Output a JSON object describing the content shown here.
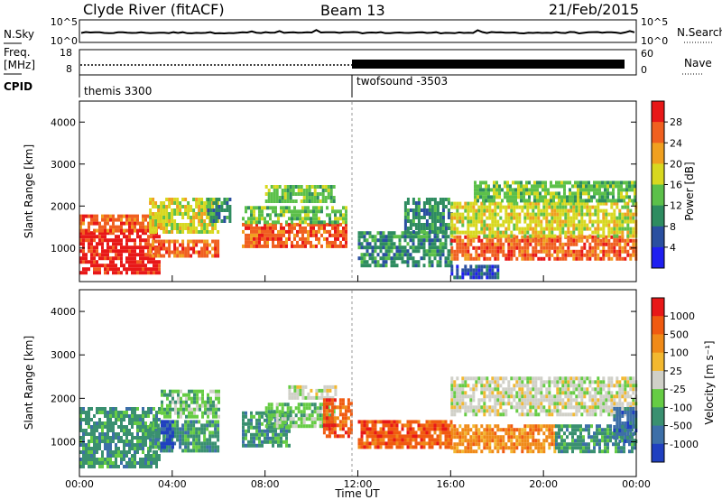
{
  "header": {
    "station": "Clyde River (fitACF)",
    "beam": "Beam 13",
    "date": "21/Feb/2015"
  },
  "noise_panel": {
    "left_label": "N.Sky",
    "right_label": "N.Search",
    "left_ticks": [
      "10^5",
      "10^0"
    ],
    "right_ticks": [
      "10^5",
      "10^0"
    ]
  },
  "freq_panel": {
    "left_label_1": "Freq.",
    "left_label_2": "[MHz]",
    "right_label": "Nave",
    "left_ticks": [
      "18",
      "8"
    ],
    "right_ticks": [
      "60",
      "0"
    ]
  },
  "cpid_panel": {
    "label": "CPID",
    "segments": [
      {
        "name": "themis 3300",
        "start_hour": 0
      },
      {
        "name": "twofsound -3503",
        "start_hour": 12
      }
    ]
  },
  "chart_data": [
    {
      "type": "heatmap",
      "title": "",
      "xlabel": "Time UT",
      "ylabel": "Slant Range [km]",
      "xlim_hours": [
        0,
        24
      ],
      "ylim_km": [
        200,
        4500
      ],
      "x_ticks": [
        "00:00",
        "04:00",
        "08:00",
        "12:00",
        "16:00",
        "20:00",
        "00:00"
      ],
      "y_ticks": [
        1000,
        2000,
        3000,
        4000
      ],
      "colorbar": {
        "label": "Power [dB]",
        "levels": [
          4,
          8,
          12,
          16,
          20,
          24,
          28
        ],
        "colors": [
          "#1f1ff0",
          "#2a4fa0",
          "#2e8c60",
          "#5cc04a",
          "#d8d820",
          "#f0a020",
          "#f06020",
          "#e81818"
        ]
      },
      "regions": [
        {
          "t0": 0.0,
          "t1": 3.5,
          "r0": 400,
          "r1": 1400,
          "level": 7
        },
        {
          "t0": 0.0,
          "t1": 3.5,
          "r0": 1400,
          "r1": 1800,
          "level": 6
        },
        {
          "t0": 3.0,
          "t1": 6.0,
          "r0": 800,
          "r1": 1200,
          "level": 6
        },
        {
          "t0": 3.0,
          "t1": 6.0,
          "r0": 1400,
          "r1": 2200,
          "level": 4
        },
        {
          "t0": 5.5,
          "t1": 6.5,
          "r0": 1600,
          "r1": 2200,
          "level": 2
        },
        {
          "t0": 7.0,
          "t1": 11.5,
          "r0": 1000,
          "r1": 1600,
          "level": 6
        },
        {
          "t0": 7.0,
          "t1": 11.5,
          "r0": 1600,
          "r1": 2000,
          "level": 3
        },
        {
          "t0": 8.0,
          "t1": 11.0,
          "r0": 2100,
          "r1": 2500,
          "level": 3
        },
        {
          "t0": 12.0,
          "t1": 16.0,
          "r0": 600,
          "r1": 1400,
          "level": 2
        },
        {
          "t0": 14.0,
          "t1": 16.0,
          "r0": 1400,
          "r1": 2200,
          "level": 2
        },
        {
          "t0": 16.0,
          "t1": 24.0,
          "r0": 700,
          "r1": 1300,
          "level": 6
        },
        {
          "t0": 16.0,
          "t1": 24.0,
          "r0": 1300,
          "r1": 2100,
          "level": 4
        },
        {
          "t0": 17.0,
          "t1": 24.0,
          "r0": 2100,
          "r1": 2600,
          "level": 3
        },
        {
          "t0": 16.0,
          "t1": 18.0,
          "r0": 300,
          "r1": 600,
          "level": 1
        }
      ]
    },
    {
      "type": "heatmap",
      "title": "",
      "xlabel": "Time UT",
      "ylabel": "Slant Range [km]",
      "xlim_hours": [
        0,
        24
      ],
      "ylim_km": [
        200,
        4500
      ],
      "x_ticks": [
        "00:00",
        "04:00",
        "08:00",
        "12:00",
        "16:00",
        "20:00",
        "00:00"
      ],
      "y_ticks": [
        1000,
        2000,
        3000,
        4000
      ],
      "colorbar": {
        "label": "Velocity [m s⁻¹]",
        "levels": [
          1000,
          500,
          100,
          25,
          -25,
          -100,
          -500,
          -1000
        ],
        "colors": [
          "#2040c0",
          "#3d6fa8",
          "#3a9070",
          "#66cc44",
          "#d0d0c8",
          "#f2b830",
          "#f08a18",
          "#f05a10",
          "#e81818"
        ]
      },
      "regions": [
        {
          "t0": 0.0,
          "t1": 3.5,
          "r0": 400,
          "r1": 1800,
          "level": 2
        },
        {
          "t0": 3.0,
          "t1": 6.0,
          "r0": 800,
          "r1": 1500,
          "level": 2
        },
        {
          "t0": 3.5,
          "t1": 6.0,
          "r0": 1600,
          "r1": 2200,
          "level": 3
        },
        {
          "t0": 3.5,
          "t1": 4.0,
          "r0": 900,
          "r1": 1500,
          "level": 0
        },
        {
          "t0": 7.0,
          "t1": 9.0,
          "r0": 900,
          "r1": 1700,
          "level": 2
        },
        {
          "t0": 8.0,
          "t1": 11.0,
          "r0": 1400,
          "r1": 1900,
          "level": 3
        },
        {
          "t0": 9.0,
          "t1": 11.0,
          "r0": 2000,
          "r1": 2300,
          "level": 4
        },
        {
          "t0": 10.5,
          "t1": 11.7,
          "r0": 1100,
          "r1": 2000,
          "level": 7
        },
        {
          "t0": 12.0,
          "t1": 16.0,
          "r0": 900,
          "r1": 1500,
          "level": 7
        },
        {
          "t0": 16.0,
          "t1": 20.5,
          "r0": 800,
          "r1": 1400,
          "level": 6
        },
        {
          "t0": 16.0,
          "t1": 24.0,
          "r0": 1600,
          "r1": 2500,
          "level": 4
        },
        {
          "t0": 20.5,
          "t1": 24.0,
          "r0": 800,
          "r1": 1400,
          "level": 2
        },
        {
          "t0": 23.0,
          "t1": 24.0,
          "r0": 1000,
          "r1": 1800,
          "level": 1
        }
      ]
    }
  ]
}
